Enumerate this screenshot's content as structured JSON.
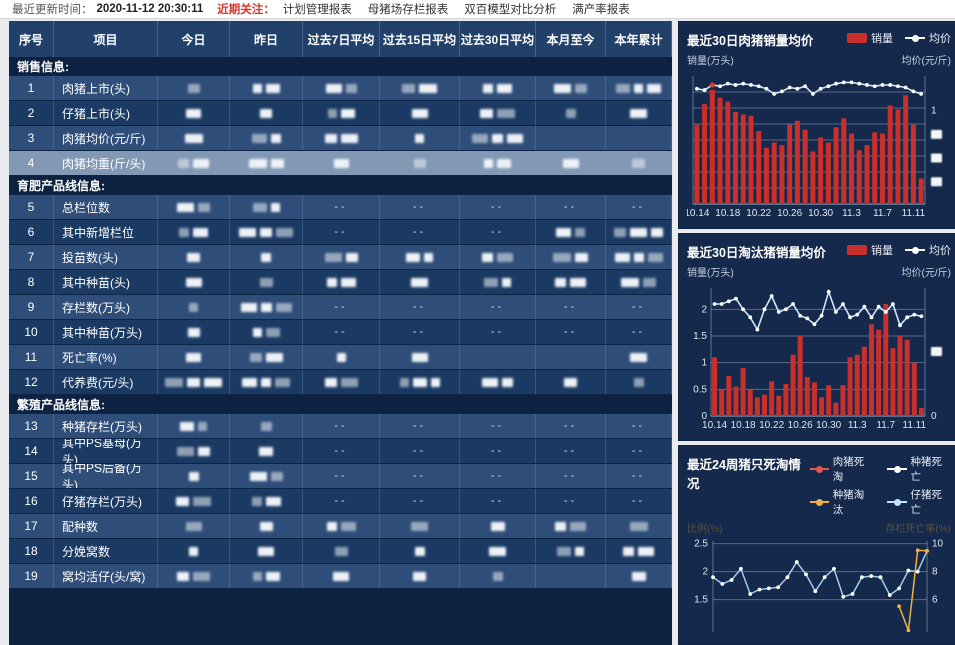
{
  "topbar": {
    "updated_label": "最近更新时间：",
    "updated_time": "2020-11-12 20:30:11",
    "focus_label": "近期关注：",
    "links": [
      "计划管理报表",
      "母猪场存栏报表",
      "双百模型对比分析",
      "满产率报表"
    ]
  },
  "table": {
    "columns": [
      "序号",
      "项目",
      "今日",
      "昨日",
      "过去7日平均",
      "过去15日平均",
      "过去30日平均",
      "本月至今",
      "本年累计"
    ],
    "dash_text": "--",
    "rows": [
      {
        "section": "销售信息:"
      },
      {
        "no": "1",
        "label": "肉猪上市(头)",
        "cells": [
          "b1",
          "b2",
          "b2",
          "b2",
          "b2",
          "b2",
          "b3"
        ]
      },
      {
        "no": "2",
        "label": "仔猪上市(头)",
        "cells": [
          "b1",
          "b1",
          "b2",
          "b1",
          "b2",
          "b1",
          "b1"
        ]
      },
      {
        "no": "3",
        "label": "肉猪均价(元/斤)",
        "cells": [
          "b1",
          "b2",
          "b2",
          "b1",
          "b3",
          "",
          ""
        ]
      },
      {
        "no": "4",
        "label": "肉猪均重(斤/头)",
        "selected": true,
        "cells": [
          "b2",
          "b2",
          "b1",
          "b1",
          "b2",
          "b1",
          "b1"
        ]
      },
      {
        "section": "育肥产品线信息:"
      },
      {
        "no": "5",
        "label": "总栏位数",
        "cells": [
          "b2",
          "b2",
          "d",
          "d",
          "d",
          "d",
          "d"
        ]
      },
      {
        "no": "6",
        "label": "其中新增栏位",
        "cells": [
          "b2",
          "b3",
          "d",
          "d",
          "d",
          "b2",
          "b3"
        ]
      },
      {
        "no": "7",
        "label": "投苗数(头)",
        "cells": [
          "b1",
          "b1",
          "b2",
          "b2",
          "b2",
          "b2",
          "b3"
        ]
      },
      {
        "no": "8",
        "label": "其中种苗(头)",
        "cells": [
          "b1",
          "b1",
          "b2",
          "b1",
          "b2",
          "b2",
          "b2"
        ]
      },
      {
        "no": "9",
        "label": "存栏数(万头)",
        "cells": [
          "b1",
          "b3",
          "d",
          "d",
          "d",
          "d",
          "d"
        ]
      },
      {
        "no": "10",
        "label": "其中种苗(万头)",
        "cells": [
          "b1",
          "b2",
          "d",
          "d",
          "d",
          "d",
          "d"
        ]
      },
      {
        "no": "11",
        "label": "死亡率(%)",
        "cells": [
          "b1",
          "b2",
          "b1",
          "b1",
          "",
          "",
          "b1"
        ]
      },
      {
        "no": "12",
        "label": "代养费(元/头)",
        "cells": [
          "b3",
          "b3",
          "b2",
          "b3",
          "b2",
          "b1",
          "b1"
        ]
      },
      {
        "section": "繁殖产品线信息:"
      },
      {
        "no": "13",
        "label": "种猪存栏(万头)",
        "cells": [
          "b2",
          "b1",
          "d",
          "d",
          "d",
          "d",
          "d"
        ]
      },
      {
        "no": "14",
        "label": "其中PS基母(万头)",
        "cells": [
          "b2",
          "b1",
          "d",
          "d",
          "d",
          "d",
          "d"
        ]
      },
      {
        "no": "15",
        "label": "其中PS后备(万头)",
        "cells": [
          "b1",
          "b2",
          "d",
          "d",
          "d",
          "d",
          "d"
        ]
      },
      {
        "no": "16",
        "label": "仔猪存栏(万头)",
        "cells": [
          "b2",
          "b2",
          "d",
          "d",
          "d",
          "d",
          "d"
        ]
      },
      {
        "no": "17",
        "label": "配种数",
        "cells": [
          "b1",
          "b1",
          "b2",
          "b1",
          "b1",
          "b2",
          "b1"
        ]
      },
      {
        "no": "18",
        "label": "分娩窝数",
        "cells": [
          "b1",
          "b1",
          "b1",
          "b1",
          "b1",
          "b2",
          "b2"
        ]
      },
      {
        "no": "19",
        "label": "窝均活仔(头/窝)",
        "cells": [
          "b2",
          "b2",
          "b1",
          "b1",
          "b1",
          "",
          "b1"
        ]
      }
    ]
  },
  "chart_data": [
    {
      "type": "bar",
      "title": "最近30日肉猪销量均价",
      "legend": [
        {
          "label": "销量",
          "marker": "bar",
          "color": "#c9302c"
        },
        {
          "label": "均价",
          "marker": "line-dot",
          "color": "#ffffff"
        }
      ],
      "left_axis_label": "销量(万头)",
      "right_axis_label": "均价(元/斤)",
      "x_tick_labels": [
        "10.14",
        "10.18",
        "10.22",
        "10.26",
        "10.30",
        "11.3",
        "11.7",
        "11.11"
      ],
      "x_tick_every": 4,
      "ylim": [
        0,
        10
      ],
      "left_ticks_hidden": true,
      "right_ticks": [
        {
          "frac": 0.27,
          "label": "1"
        },
        {
          "frac": 0.46,
          "redacted": true
        },
        {
          "frac": 0.645,
          "redacted": true
        },
        {
          "frac": 0.83,
          "redacted": true
        }
      ],
      "grid_lines": 7,
      "series": [
        {
          "name": "销量",
          "kind": "bar",
          "color": "#c9302c",
          "values": [
            6.2,
            7.8,
            8.9,
            8.3,
            8.0,
            7.2,
            7.0,
            6.9,
            5.7,
            4.4,
            4.8,
            4.6,
            6.2,
            6.5,
            5.8,
            4.1,
            5.2,
            4.8,
            6.0,
            6.7,
            5.5,
            4.2,
            4.6,
            5.6,
            5.5,
            7.7,
            7.4,
            8.5,
            6.2,
            2.0
          ]
        },
        {
          "name": "均价",
          "kind": "line",
          "color": "#cfe8fb",
          "marker_color": "#ffffff",
          "highlight_index": 2,
          "highlight_color": "#e03a3a",
          "values": [
            9.0,
            8.9,
            9.3,
            9.2,
            9.4,
            9.3,
            9.4,
            9.3,
            9.2,
            9.0,
            8.6,
            8.8,
            9.1,
            9.0,
            9.2,
            8.6,
            9.0,
            9.2,
            9.4,
            9.5,
            9.5,
            9.4,
            9.3,
            9.2,
            9.3,
            9.3,
            9.2,
            9.1,
            8.8,
            8.6
          ]
        }
      ]
    },
    {
      "type": "bar",
      "title": "最近30日淘汰猪销量均价",
      "legend": [
        {
          "label": "销量",
          "marker": "bar",
          "color": "#c9302c"
        },
        {
          "label": "均价",
          "marker": "line-dot",
          "color": "#ffffff"
        }
      ],
      "left_axis_label": "销量(万头)",
      "right_axis_label": "均价(元/斤)",
      "x_tick_labels": [
        "10.14",
        "10.18",
        "10.22",
        "10.26",
        "10.30",
        "11.3",
        "11.7",
        "11.11"
      ],
      "x_tick_every": 4,
      "ylim": [
        0,
        2.4
      ],
      "left_ticks": [
        0,
        0.5,
        1,
        1.5,
        2
      ],
      "right_ticks": [
        {
          "frac": 0.5,
          "redacted": true
        },
        {
          "frac": 1.0,
          "label": "0"
        }
      ],
      "series": [
        {
          "name": "销量",
          "kind": "bar",
          "color": "#c9302c",
          "values": [
            1.1,
            0.5,
            0.75,
            0.55,
            0.9,
            0.5,
            0.35,
            0.4,
            0.65,
            0.38,
            0.6,
            1.15,
            1.5,
            0.73,
            0.63,
            0.35,
            0.58,
            0.25,
            0.58,
            1.1,
            1.15,
            1.3,
            1.72,
            1.62,
            2.1,
            1.27,
            1.5,
            1.43,
            1.0,
            0.15
          ]
        },
        {
          "name": "均价",
          "kind": "line",
          "color": "#cfe8fb",
          "marker_color": "#ffffff",
          "values": [
            2.1,
            2.1,
            2.15,
            2.2,
            2.0,
            1.85,
            1.62,
            2.0,
            2.25,
            1.95,
            2.0,
            2.1,
            1.88,
            1.83,
            1.72,
            1.88,
            2.33,
            1.95,
            2.1,
            1.85,
            1.9,
            2.05,
            1.85,
            2.05,
            1.95,
            2.1,
            1.7,
            1.85,
            1.9,
            1.87
          ]
        }
      ]
    },
    {
      "type": "line",
      "title": "最近24周猪只死淘情况",
      "legend": [
        {
          "label": "肉猪死淘",
          "marker": "line-dot",
          "color": "#e05a52"
        },
        {
          "label": "种猪死亡",
          "marker": "line-dot",
          "color": "#ffffff"
        },
        {
          "label": "种猪淘汰",
          "marker": "line-dot",
          "color": "#f2b13e"
        },
        {
          "label": "仔猪死亡",
          "marker": "line-dot",
          "color": "#bfe3f7"
        }
      ],
      "left_axis_label": "比例(%)",
      "right_axis_label": "存栏死亡率(%)",
      "left_ticks": [
        2.5,
        2,
        1.5
      ],
      "right_ticks": [
        10,
        8,
        6
      ],
      "weeks": 24,
      "series": [
        {
          "name": "仔猪死亡",
          "color": "#9fd0ee",
          "marker_color": "#ffffff",
          "values": [
            1.9,
            1.78,
            1.85,
            2.05,
            1.6,
            1.68,
            1.7,
            1.72,
            1.9,
            2.17,
            1.95,
            1.65,
            1.9,
            2.05,
            1.55,
            1.6,
            1.9,
            1.92,
            1.9,
            1.58,
            1.7,
            2.02,
            2.0,
            2.37
          ]
        },
        {
          "name": "种猪淘汰",
          "color": "#f2b13e",
          "marker_color": "#f2b13e",
          "values": [
            null,
            null,
            null,
            null,
            null,
            null,
            null,
            null,
            null,
            null,
            null,
            null,
            null,
            null,
            null,
            null,
            null,
            null,
            null,
            null,
            1.38,
            0.95,
            2.38,
            2.37
          ]
        },
        {
          "name": "肉猪死淘",
          "color": "#e05a52",
          "marker_color": "#e05a52",
          "values": []
        },
        {
          "name": "种猪死亡",
          "color": "#ffffff",
          "marker_color": "#ffffff",
          "values": []
        }
      ]
    }
  ]
}
